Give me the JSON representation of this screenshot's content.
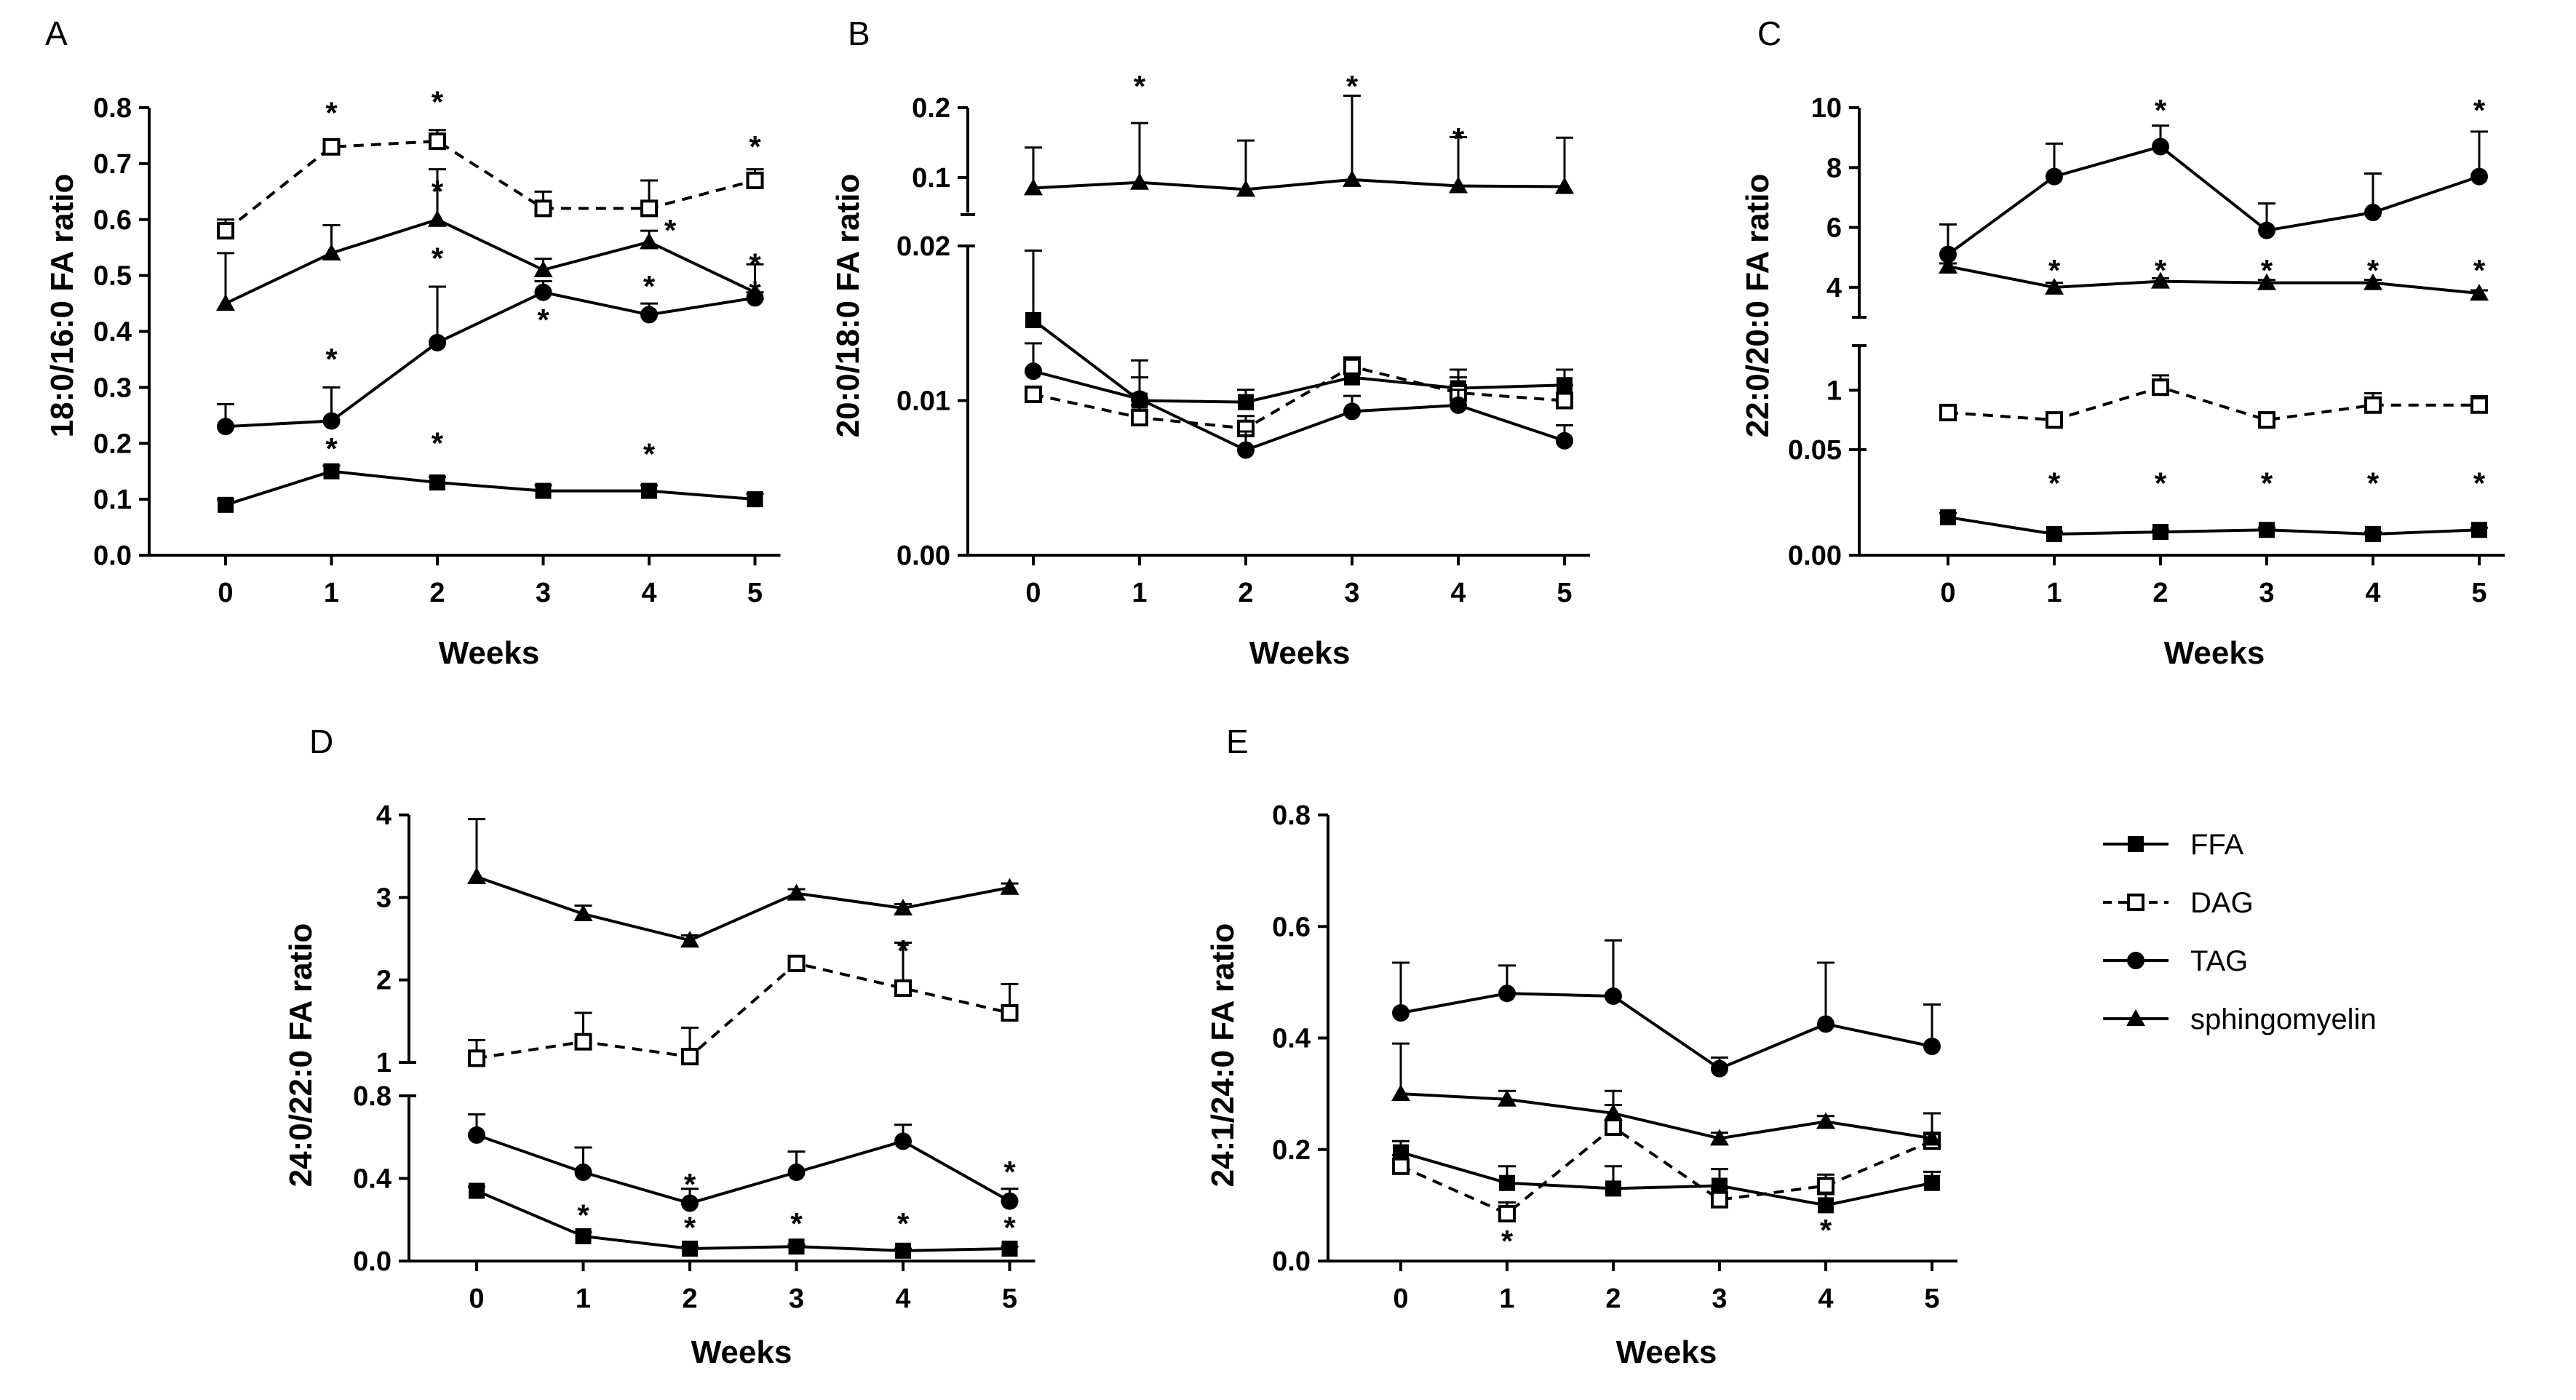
{
  "x_tick_labels": [
    "0",
    "1",
    "2",
    "3",
    "4",
    "5"
  ],
  "legend": [
    {
      "name": "FFA",
      "marker": "square-filled",
      "dash": "solid"
    },
    {
      "name": "DAG",
      "marker": "square-open",
      "dash": "dashed"
    },
    {
      "name": "TAG",
      "marker": "circle-filled",
      "dash": "solid"
    },
    {
      "name": "sphingomyelin",
      "marker": "triangle-filled",
      "dash": "solid"
    }
  ],
  "chart_data": [
    {
      "id": "A",
      "type": "line",
      "title": "A",
      "xlabel": "Weeks",
      "ylabel": "18:0/16:0 FA ratio",
      "x": [
        0,
        1,
        2,
        3,
        4,
        5
      ],
      "segments": [
        {
          "ylim": [
            0,
            0.8
          ],
          "ticks": [
            0,
            0.1,
            0.2,
            0.3,
            0.4,
            0.5,
            0.6,
            0.7,
            0.8
          ],
          "tick_labels": [
            "0.0",
            "0.1",
            "0.2",
            "0.3",
            "0.4",
            "0.5",
            "0.6",
            "0.7",
            "0.8"
          ]
        }
      ],
      "series": [
        {
          "name": "FFA",
          "values": [
            0.09,
            0.15,
            0.13,
            0.115,
            0.115,
            0.1
          ],
          "errors": [
            0.01,
            0.01,
            0.01,
            0.01,
            0.01,
            0.01
          ]
        },
        {
          "name": "DAG",
          "values": [
            0.58,
            0.73,
            0.74,
            0.62,
            0.62,
            0.67
          ],
          "errors": [
            0.02,
            0.01,
            0.02,
            0.03,
            0.05,
            0.02
          ]
        },
        {
          "name": "TAG",
          "values": [
            0.23,
            0.24,
            0.38,
            0.47,
            0.43,
            0.46
          ],
          "errors": [
            0.04,
            0.06,
            0.1,
            0.02,
            0.02,
            0.01
          ]
        },
        {
          "name": "sphingomyelin",
          "values": [
            0.45,
            0.54,
            0.6,
            0.51,
            0.56,
            0.47
          ],
          "errors": [
            0.09,
            0.05,
            0.09,
            0.02,
            0.02,
            0.05
          ]
        }
      ],
      "stars": [
        {
          "x": 1,
          "y": 0.19
        },
        {
          "x": 2,
          "y": 0.2
        },
        {
          "x": 4,
          "y": 0.18
        },
        {
          "x": 1,
          "y": 0.35
        },
        {
          "x": 2,
          "y": 0.53
        },
        {
          "x": 3,
          "y": 0.42
        },
        {
          "x": 4,
          "y": 0.48
        },
        {
          "x": 5,
          "y": 0.52
        },
        {
          "x": 2,
          "y": 0.65
        },
        {
          "x": 4.2,
          "y": 0.58
        },
        {
          "x": 5,
          "y": 0.47
        },
        {
          "x": 1,
          "y": 0.79
        },
        {
          "x": 2,
          "y": 0.81
        },
        {
          "x": 5,
          "y": 0.73
        }
      ]
    },
    {
      "id": "B",
      "type": "line",
      "title": "B",
      "xlabel": "Weeks",
      "ylabel": "20:0/18:0 FA ratio",
      "x": [
        0,
        1,
        2,
        3,
        4,
        5
      ],
      "segments": [
        {
          "ylim": [
            0,
            0.02
          ],
          "ticks": [
            0,
            0.01,
            0.02
          ],
          "tick_labels": [
            "0.00",
            "0.01",
            "0.02"
          ]
        },
        {
          "ylim": [
            0.05,
            0.2
          ],
          "ticks": [
            0.1,
            0.2
          ],
          "tick_labels": [
            "0.1",
            "0.2"
          ]
        }
      ],
      "series": [
        {
          "name": "FFA",
          "values": [
            0.0152,
            0.01,
            0.0099,
            0.0115,
            0.0108,
            0.011
          ],
          "errors": [
            0.0045,
            0.0015,
            0.0008,
            0.0008,
            0.0012,
            0.001
          ]
        },
        {
          "name": "DAG",
          "values": [
            0.0104,
            0.0089,
            0.0082,
            0.0122,
            0.0105,
            0.01
          ],
          "errors": [
            0.0005,
            0.0008,
            0.0008,
            0.0006,
            0.001,
            0.001
          ]
        },
        {
          "name": "TAG",
          "values": [
            0.0119,
            0.0101,
            0.0068,
            0.0093,
            0.0097,
            0.0074
          ],
          "errors": [
            0.0018,
            0.0025,
            0.0012,
            0.001,
            0.001,
            0.001
          ]
        },
        {
          "name": "sphingomyelin",
          "values": [
            0.085,
            0.093,
            0.083,
            0.097,
            0.088,
            0.087
          ],
          "errors": [
            0.058,
            0.085,
            0.07,
            0.12,
            0.07,
            0.07
          ]
        }
      ],
      "stars": [
        {
          "x": 1,
          "y": 0.23
        },
        {
          "x": 3,
          "y": 0.23
        },
        {
          "x": 4,
          "y": 0.155
        }
      ]
    },
    {
      "id": "C",
      "type": "line",
      "title": "C",
      "xlabel": "Weeks",
      "ylabel": "22:0/20:0 FA ratio",
      "x": [
        0,
        1,
        2,
        3,
        4,
        5
      ],
      "segments": [
        {
          "ylim": [
            0,
            0.05
          ],
          "ticks": [
            0,
            0.05
          ],
          "tick_labels": [
            "0.00",
            "0.05"
          ]
        },
        {
          "ylim": [
            0.6,
            1.3
          ],
          "ticks": [
            1
          ],
          "tick_labels": [
            "1"
          ]
        },
        {
          "ylim": [
            3,
            10
          ],
          "ticks": [
            4,
            6,
            8,
            10
          ],
          "tick_labels": [
            "4",
            "6",
            "8",
            "10"
          ]
        }
      ],
      "series": [
        {
          "name": "FFA",
          "values": [
            0.018,
            0.01,
            0.011,
            0.012,
            0.01,
            0.012
          ],
          "errors": [
            0.002,
            0.001,
            0.001,
            0.001,
            0.001,
            0.001
          ]
        },
        {
          "name": "DAG",
          "values": [
            0.85,
            0.8,
            1.02,
            0.8,
            0.9,
            0.9
          ],
          "errors": [
            0.05,
            0.05,
            0.08,
            0.05,
            0.08,
            0.06
          ]
        },
        {
          "name": "TAG",
          "values": [
            5.1,
            7.7,
            8.7,
            5.9,
            6.5,
            7.7
          ],
          "errors": [
            1.0,
            1.1,
            0.7,
            0.9,
            1.3,
            1.5
          ]
        },
        {
          "name": "sphingomyelin",
          "values": [
            4.7,
            4.0,
            4.2,
            4.15,
            4.15,
            3.8
          ],
          "errors": [
            0.1,
            0.15,
            0.1,
            0.1,
            0.1,
            0.1
          ]
        }
      ],
      "stars": [
        {
          "x": 1,
          "y": 0.034
        },
        {
          "x": 2,
          "y": 0.034
        },
        {
          "x": 3,
          "y": 0.034
        },
        {
          "x": 4,
          "y": 0.034
        },
        {
          "x": 5,
          "y": 0.034
        },
        {
          "x": 1,
          "y": 4.55
        },
        {
          "x": 2,
          "y": 4.55
        },
        {
          "x": 3,
          "y": 4.55
        },
        {
          "x": 4,
          "y": 4.55
        },
        {
          "x": 5,
          "y": 4.55
        },
        {
          "x": 2,
          "y": 9.9
        },
        {
          "x": 5,
          "y": 9.9
        }
      ]
    },
    {
      "id": "D",
      "type": "line",
      "title": "D",
      "xlabel": "Weeks",
      "ylabel": "24:0/22:0 FA ratio",
      "x": [
        0,
        1,
        2,
        3,
        4,
        5
      ],
      "segments": [
        {
          "ylim": [
            0,
            0.8
          ],
          "ticks": [
            0,
            0.4,
            0.8
          ],
          "tick_labels": [
            "0.0",
            "0.4",
            "0.8"
          ]
        },
        {
          "ylim": [
            1,
            4
          ],
          "ticks": [
            1,
            2,
            3,
            4
          ],
          "tick_labels": [
            "1",
            "2",
            "3",
            "4"
          ]
        }
      ],
      "series": [
        {
          "name": "FFA",
          "values": [
            0.34,
            0.12,
            0.06,
            0.07,
            0.05,
            0.06
          ],
          "errors": [
            0.02,
            0.02,
            0.01,
            0.01,
            0.01,
            0.01
          ]
        },
        {
          "name": "DAG",
          "values": [
            1.05,
            1.25,
            1.07,
            2.2,
            1.9,
            1.6
          ],
          "errors": [
            0.22,
            0.35,
            0.35,
            0.05,
            0.55,
            0.35
          ]
        },
        {
          "name": "TAG",
          "values": [
            0.61,
            0.43,
            0.28,
            0.43,
            0.58,
            0.29
          ],
          "errors": [
            0.1,
            0.12,
            0.07,
            0.1,
            0.08,
            0.06
          ]
        },
        {
          "name": "sphingomyelin",
          "values": [
            3.25,
            2.8,
            2.48,
            3.05,
            2.87,
            3.12
          ],
          "errors": [
            0.7,
            0.1,
            0.06,
            0.05,
            0.05,
            0.05
          ]
        }
      ],
      "stars": [
        {
          "x": 1,
          "y": 0.22
        },
        {
          "x": 2,
          "y": 0.16
        },
        {
          "x": 2,
          "y": 0.37
        },
        {
          "x": 3,
          "y": 0.18
        },
        {
          "x": 4,
          "y": 0.18
        },
        {
          "x": 5,
          "y": 0.16
        },
        {
          "x": 5,
          "y": 0.43
        },
        {
          "x": 4,
          "y": 2.35
        }
      ]
    },
    {
      "id": "E",
      "type": "line",
      "title": "E",
      "xlabel": "Weeks",
      "ylabel": "24:1/24:0 FA ratio",
      "x": [
        0,
        1,
        2,
        3,
        4,
        5
      ],
      "segments": [
        {
          "ylim": [
            0,
            0.8
          ],
          "ticks": [
            0,
            0.2,
            0.4,
            0.6,
            0.8
          ],
          "tick_labels": [
            "0.0",
            "0.2",
            "0.4",
            "0.6",
            "0.8"
          ]
        }
      ],
      "series": [
        {
          "name": "FFA",
          "values": [
            0.195,
            0.14,
            0.13,
            0.135,
            0.1,
            0.14
          ],
          "errors": [
            0.02,
            0.03,
            0.04,
            0.03,
            0.02,
            0.02
          ]
        },
        {
          "name": "DAG",
          "values": [
            0.17,
            0.085,
            0.24,
            0.11,
            0.135,
            0.215
          ],
          "errors": [
            0.02,
            0.02,
            0.04,
            0.02,
            0.02,
            0.05
          ]
        },
        {
          "name": "TAG",
          "values": [
            0.445,
            0.48,
            0.475,
            0.345,
            0.425,
            0.385
          ],
          "errors": [
            0.09,
            0.05,
            0.1,
            0.02,
            0.11,
            0.075
          ]
        },
        {
          "name": "sphingomyelin",
          "values": [
            0.3,
            0.29,
            0.265,
            0.22,
            0.25,
            0.22
          ],
          "errors": [
            0.09,
            0.015,
            0.04,
            0.01,
            0.01,
            0.01
          ]
        }
      ],
      "stars": [
        {
          "x": 1,
          "y": 0.035
        },
        {
          "x": 4,
          "y": 0.055
        }
      ]
    }
  ]
}
